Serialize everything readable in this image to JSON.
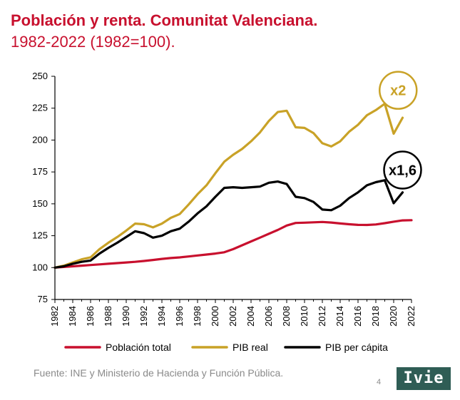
{
  "header": {
    "title": "Población y renta. Comunitat Valenciana.",
    "subtitle": "1982-2022 (1982=100)."
  },
  "footer": {
    "source": "Fuente: INE y Ministerio de Hacienda y Función Pública.",
    "page_number": "4",
    "logo_text": "Ivie"
  },
  "colors": {
    "title": "#c8102e",
    "poblacion": "#c8102e",
    "pib_real": "#c9a227",
    "pib_per_capita": "#000000",
    "logo_bg": "#2f5d55"
  },
  "chart_data": {
    "type": "line",
    "title": "Población y renta. Comunitat Valenciana. 1982-2022 (1982=100).",
    "xlabel": "",
    "ylabel": "",
    "xlim": [
      1982,
      2022
    ],
    "ylim": [
      75,
      250
    ],
    "yticks": [
      75,
      100,
      125,
      150,
      175,
      200,
      225,
      250
    ],
    "xticks": [
      1982,
      1984,
      1986,
      1988,
      1990,
      1992,
      1994,
      1996,
      1998,
      2000,
      2002,
      2004,
      2006,
      2008,
      2010,
      2012,
      2014,
      2016,
      2018,
      2020,
      2022
    ],
    "grid": false,
    "legend_position": "bottom",
    "series": [
      {
        "name": "Población total",
        "color": "#c8102e",
        "x": [
          1982,
          1983,
          1984,
          1985,
          1986,
          1987,
          1988,
          1989,
          1990,
          1991,
          1992,
          1993,
          1994,
          1995,
          1996,
          1997,
          1998,
          1999,
          2000,
          2001,
          2002,
          2003,
          2004,
          2005,
          2006,
          2007,
          2008,
          2009,
          2010,
          2011,
          2012,
          2013,
          2014,
          2015,
          2016,
          2017,
          2018,
          2019,
          2020,
          2021,
          2022
        ],
        "values": [
          100,
          100.5,
          101,
          101.5,
          102,
          102.5,
          103,
          103.5,
          104,
          104.5,
          105.2,
          106,
          106.8,
          107.5,
          108,
          108.7,
          109.5,
          110.2,
          111,
          112,
          114.5,
          117.5,
          120.5,
          123.5,
          126.5,
          129.5,
          133,
          135,
          135.2,
          135.5,
          135.8,
          135.3,
          134.6,
          134,
          133.5,
          133.4,
          133.8,
          134.8,
          136,
          137,
          137.2
        ]
      },
      {
        "name": "PIB real",
        "color": "#c9a227",
        "x": [
          1982,
          1983,
          1984,
          1985,
          1986,
          1987,
          1988,
          1989,
          1990,
          1991,
          1992,
          1993,
          1994,
          1995,
          1996,
          1997,
          1998,
          1999,
          2000,
          2001,
          2002,
          2003,
          2004,
          2005,
          2006,
          2007,
          2008,
          2009,
          2010,
          2011,
          2012,
          2013,
          2014,
          2015,
          2016,
          2017,
          2018,
          2019,
          2020,
          2021
        ],
        "values": [
          100,
          101.5,
          104,
          106.5,
          108,
          114.5,
          119.5,
          124,
          129,
          134.5,
          134,
          131.5,
          134.5,
          139,
          142,
          149.5,
          157.5,
          164.5,
          174,
          183,
          188.5,
          193,
          199,
          206,
          215,
          222,
          223,
          210,
          209.5,
          205.5,
          197.5,
          195,
          199,
          206.5,
          212,
          219.5,
          223.5,
          228.5,
          205,
          217.5
        ]
      },
      {
        "name": "PIB per cápita",
        "color": "#000000",
        "x": [
          1982,
          1983,
          1984,
          1985,
          1986,
          1987,
          1988,
          1989,
          1990,
          1991,
          1992,
          1993,
          1994,
          1995,
          1996,
          1997,
          1998,
          1999,
          2000,
          2001,
          2002,
          2003,
          2004,
          2005,
          2006,
          2007,
          2008,
          2009,
          2010,
          2011,
          2012,
          2013,
          2014,
          2015,
          2016,
          2017,
          2018,
          2019,
          2020,
          2021
        ],
        "values": [
          100,
          101,
          103,
          104.5,
          105.5,
          111,
          115.5,
          119.5,
          124,
          128.5,
          127,
          123.5,
          125,
          128.5,
          130.5,
          136,
          142.5,
          148,
          155.5,
          162.5,
          163,
          162.5,
          163,
          163.5,
          166.5,
          167.5,
          165.5,
          155.5,
          154.5,
          151.5,
          145.5,
          145,
          148.5,
          154.5,
          159,
          164.5,
          167,
          168.5,
          150.5,
          159
        ]
      }
    ],
    "annotations": [
      {
        "text": "x2",
        "series": "PIB real",
        "x": 2020.5,
        "y": 239,
        "color": "#c9a227"
      },
      {
        "text": "x1,6",
        "series": "PIB per cápita",
        "x": 2021,
        "y": 176.5,
        "color": "#000000"
      }
    ]
  }
}
